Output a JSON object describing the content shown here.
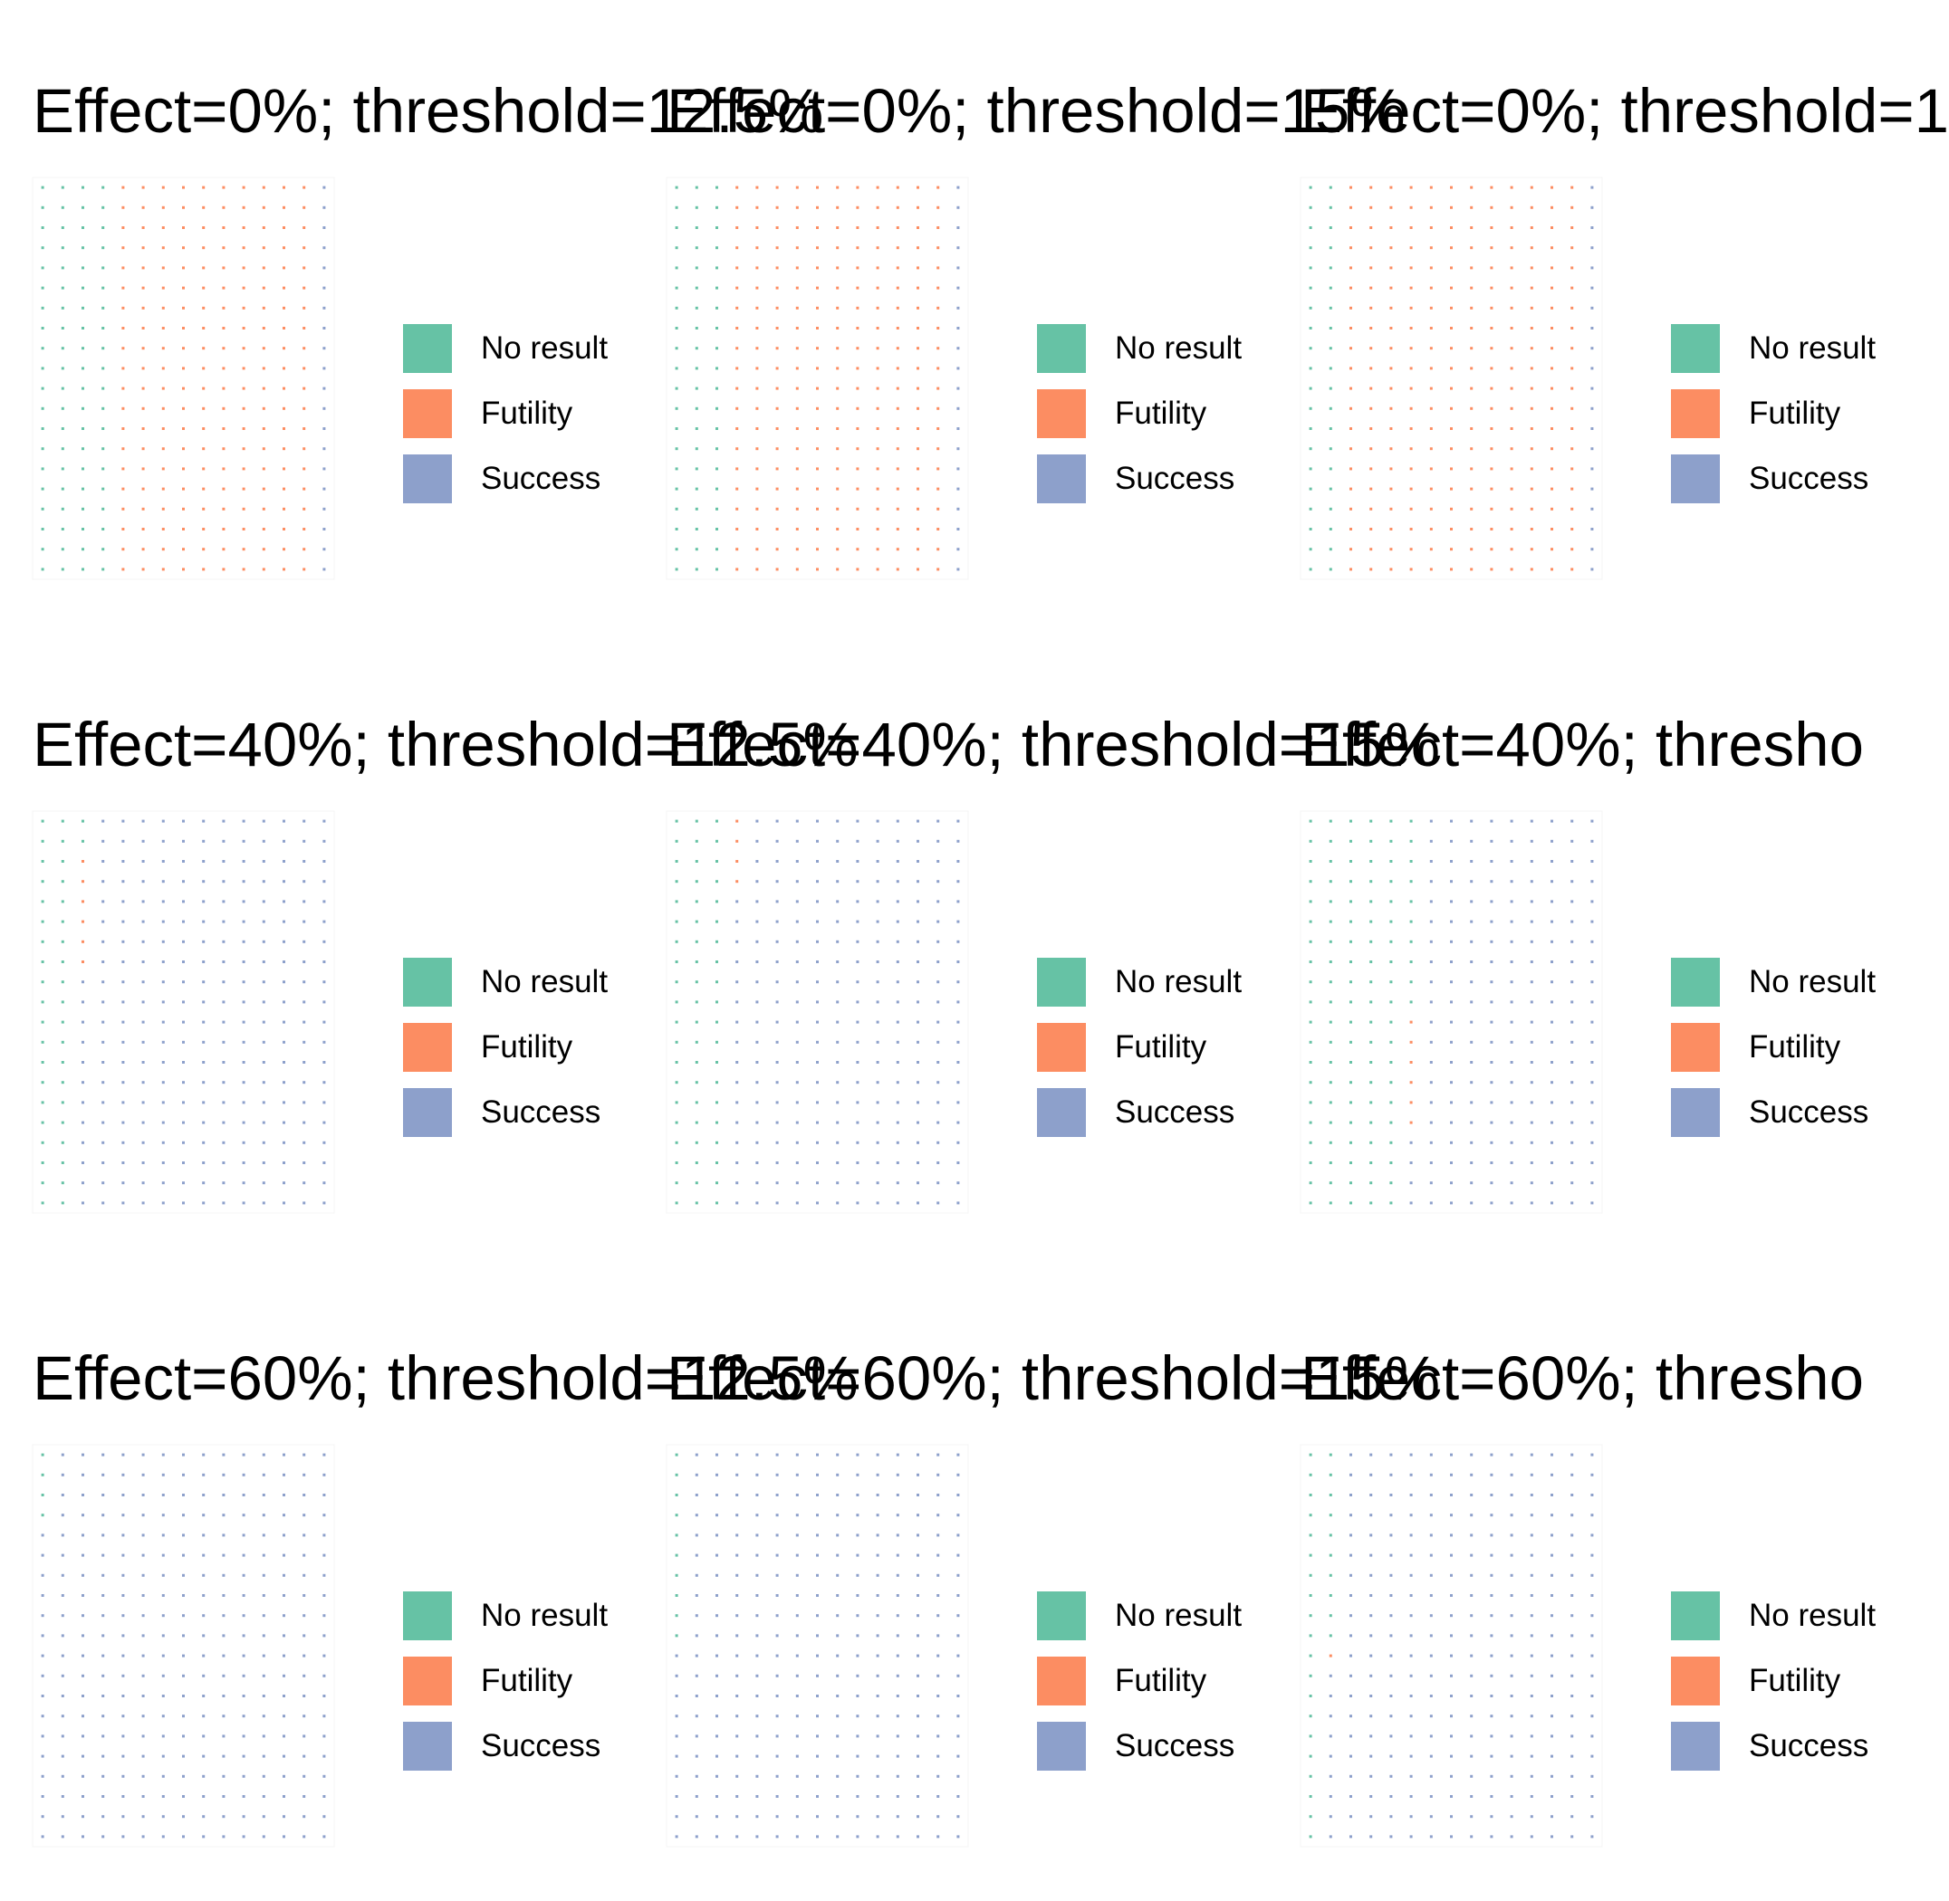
{
  "colors": {
    "No result": "#66c2a5",
    "Futility": "#fc8d62",
    "Success": "#8da0cb"
  },
  "legend": [
    "No result",
    "Futility",
    "Success"
  ],
  "chart_data": [
    {
      "type": "waffle",
      "title": "Effect=0%; threshold=12.5%",
      "grid": {
        "rows": 20,
        "cols": 15
      },
      "counts": {
        "No result": 80,
        "Futility": 200,
        "Success": 20
      },
      "legend": [
        "No result",
        "Futility",
        "Success"
      ]
    },
    {
      "type": "waffle",
      "title": "Effect=0%; threshold=15%",
      "grid": {
        "rows": 20,
        "cols": 15
      },
      "counts": {
        "No result": 60,
        "Futility": 220,
        "Success": 20
      },
      "legend": [
        "No result",
        "Futility",
        "Success"
      ]
    },
    {
      "type": "waffle",
      "title": "Effect=0%; threshold=1",
      "grid": {
        "rows": 20,
        "cols": 15
      },
      "counts": {
        "No result": 40,
        "Futility": 240,
        "Success": 20
      },
      "legend": [
        "No result",
        "Futility",
        "Success"
      ]
    },
    {
      "type": "waffle",
      "title": "Effect=40%; threshold=12.5%",
      "grid": {
        "rows": 20,
        "cols": 15
      },
      "counts": {
        "No result": 42,
        "Futility": 6,
        "Success": 252
      },
      "legend": [
        "No result",
        "Futility",
        "Success"
      ]
    },
    {
      "type": "waffle",
      "title": "Effect=40%; threshold=15%",
      "grid": {
        "rows": 20,
        "cols": 15
      },
      "counts": {
        "No result": 60,
        "Futility": 4,
        "Success": 236
      },
      "legend": [
        "No result",
        "Futility",
        "Success"
      ]
    },
    {
      "type": "waffle",
      "title": "Effect=40%; thresho",
      "grid": {
        "rows": 20,
        "cols": 15
      },
      "counts": {
        "No result": 110,
        "Futility": 6,
        "Success": 184
      },
      "legend": [
        "No result",
        "Futility",
        "Success"
      ]
    },
    {
      "type": "waffle",
      "title": "Effect=60%; threshold=12.5%",
      "grid": {
        "rows": 20,
        "cols": 15
      },
      "counts": {
        "No result": 4,
        "Futility": 0,
        "Success": 296
      },
      "legend": [
        "No result",
        "Futility",
        "Success"
      ]
    },
    {
      "type": "waffle",
      "title": "Effect=60%; threshold=15%",
      "grid": {
        "rows": 20,
        "cols": 15
      },
      "counts": {
        "No result": 10,
        "Futility": 0,
        "Success": 290
      },
      "legend": [
        "No result",
        "Futility",
        "Success"
      ]
    },
    {
      "type": "waffle",
      "title": "Effect=60%; thresho",
      "grid": {
        "rows": 20,
        "cols": 15
      },
      "counts": {
        "No result": 30,
        "Futility": 1,
        "Success": 269
      },
      "legend": [
        "No result",
        "Futility",
        "Success"
      ]
    }
  ]
}
